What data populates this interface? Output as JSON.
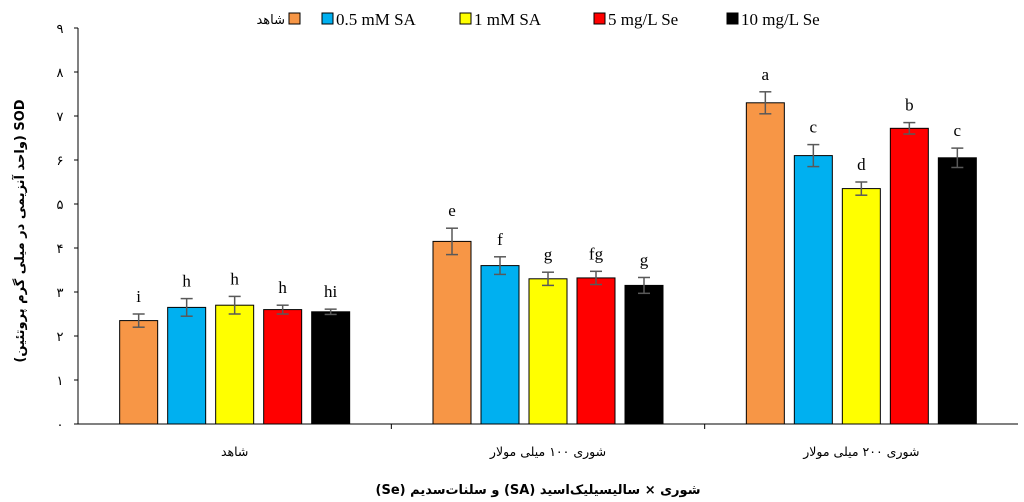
{
  "chart_data": {
    "type": "bar",
    "categories": [
      "شاهد",
      "شوری ۱۰۰ میلی مولار",
      "شوری ۲۰۰ میلی مولار"
    ],
    "series": [
      {
        "name": "شاهد",
        "color": "#F79646",
        "values": [
          2.35,
          4.15,
          7.3
        ],
        "errors": [
          0.15,
          0.3,
          0.25
        ],
        "letters": [
          "i",
          "e",
          "a"
        ]
      },
      {
        "name": "0.5 mM SA",
        "color": "#00B0F0",
        "values": [
          2.65,
          3.6,
          6.1
        ],
        "errors": [
          0.2,
          0.2,
          0.25
        ],
        "letters": [
          "h",
          "f",
          "c"
        ]
      },
      {
        "name": "1 mM SA",
        "color": "#FFFF00",
        "values": [
          2.7,
          3.3,
          5.35
        ],
        "errors": [
          0.2,
          0.15,
          0.15
        ],
        "letters": [
          "h",
          "g",
          "d"
        ]
      },
      {
        "name": "5 mg/L Se",
        "color": "#FF0000",
        "values": [
          2.6,
          3.32,
          6.72
        ],
        "errors": [
          0.1,
          0.15,
          0.13
        ],
        "letters": [
          "h",
          "fg",
          "b"
        ]
      },
      {
        "name": "10 mg/L Se",
        "color": "#000000",
        "values": [
          2.55,
          3.15,
          6.05
        ],
        "errors": [
          0.06,
          0.18,
          0.22
        ],
        "letters": [
          "hi",
          "g",
          "c"
        ]
      }
    ],
    "y_ticks": [
      "۰",
      "۱",
      "۲",
      "۳",
      "۴",
      "۵",
      "۶",
      "۷",
      "۸",
      "۹"
    ],
    "ylim": [
      0,
      9
    ],
    "xlabel": "شوری × سالیسیلیک‌اسید (SA) و سلنات‌سدیم (Se)",
    "ylabel": "SOD (واحد آنزیمی در میلی گرم پروتئین)",
    "legend_position": "top",
    "grid": false
  }
}
